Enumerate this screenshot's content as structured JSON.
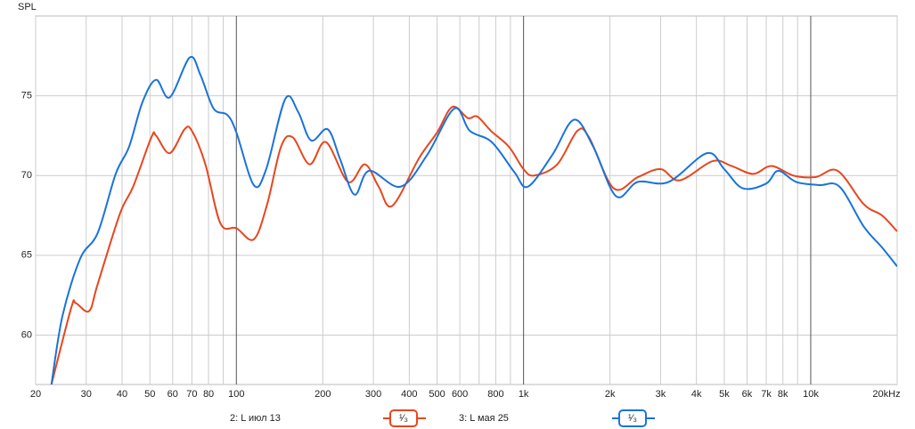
{
  "chart_data": {
    "type": "line",
    "y_label": "SPL",
    "log_x": true,
    "grid": true,
    "xlim": [
      20,
      20000
    ],
    "ylim": [
      56.9,
      80
    ],
    "xticks": [
      20,
      30,
      40,
      50,
      60,
      70,
      80,
      100,
      200,
      300,
      400,
      500,
      600,
      800,
      {
        "value": 1000,
        "label": "1k"
      },
      {
        "value": 2000,
        "label": "2k"
      },
      {
        "value": 3000,
        "label": "3k"
      },
      {
        "value": 4000,
        "label": "4k"
      },
      {
        "value": 5000,
        "label": "5k"
      },
      {
        "value": 6000,
        "label": "6k"
      },
      {
        "value": 7000,
        "label": "7k"
      },
      {
        "value": 8000,
        "label": "8k"
      },
      {
        "value": 10000,
        "label": "10k"
      },
      {
        "value": 20000,
        "label": "20kHz"
      }
    ],
    "xminor": [
      90,
      700,
      900,
      9000
    ],
    "yticks": [
      60,
      65,
      70,
      75
    ],
    "series": [
      {
        "name": "2: L июл 13",
        "smoothing": "¹⁄₃",
        "color": "#e8461e",
        "x": [
          22.7,
          26.6,
          27.6,
          30.7,
          32.9,
          39.3,
          43.7,
          50.6,
          52.5,
          58.6,
          66,
          70,
          78,
          88,
          100,
          115,
          128,
          143,
          157,
          180,
          205,
          245,
          280,
          313,
          349,
          433,
          500,
          565,
          640,
          690,
          770,
          890,
          1000,
          1090,
          1310,
          1540,
          1690,
          2060,
          2500,
          3000,
          3500,
          4550,
          5300,
          6300,
          7300,
          8700,
          10400,
          12400,
          15300,
          17700,
          20000
        ],
        "values": [
          56.9,
          61.7,
          62.0,
          61.5,
          63.2,
          67.6,
          69.3,
          72.4,
          72.5,
          71.4,
          72.9,
          72.8,
          70.7,
          67.0,
          66.7,
          66.0,
          68.2,
          71.8,
          72.4,
          70.7,
          72.1,
          69.6,
          70.7,
          69.3,
          68.1,
          71.1,
          72.7,
          74.3,
          73.6,
          73.7,
          72.8,
          71.8,
          70.4,
          70.0,
          70.7,
          72.8,
          72.4,
          69.2,
          69.9,
          70.4,
          69.7,
          70.9,
          70.6,
          70.1,
          70.6,
          70.0,
          69.9,
          70.3,
          68.2,
          67.5,
          66.5
        ]
      },
      {
        "name": "3: L мая 25",
        "smoothing": "¹⁄₃",
        "color": "#1a73d9",
        "x": [
          22.7,
          24.8,
          28.6,
          32.9,
          38,
          42.3,
          47.1,
          52.5,
          58.6,
          68.8,
          75,
          83.3,
          93,
          100,
          115,
          127,
          148,
          164,
          182,
          208,
          230,
          258,
          290,
          373,
          462,
          574,
          650,
          775,
          930,
          1035,
          1260,
          1500,
          1750,
          2100,
          2500,
          3200,
          4350,
          5000,
          5800,
          7000,
          7700,
          8900,
          10700,
          12600,
          15300,
          17700,
          20000
        ],
        "values": [
          56.9,
          61.2,
          64.8,
          66.4,
          70.1,
          71.8,
          74.6,
          76.0,
          74.9,
          77.4,
          76.3,
          74.2,
          73.8,
          72.7,
          69.4,
          70.4,
          74.8,
          74.0,
          72.2,
          72.9,
          71.0,
          68.8,
          70.3,
          69.3,
          71.3,
          74.2,
          72.8,
          72.1,
          70.2,
          69.3,
          71.3,
          73.5,
          71.8,
          68.7,
          69.6,
          69.6,
          71.4,
          70.4,
          69.2,
          69.5,
          70.3,
          69.6,
          69.4,
          69.3,
          66.8,
          65.5,
          64.3
        ]
      }
    ]
  }
}
